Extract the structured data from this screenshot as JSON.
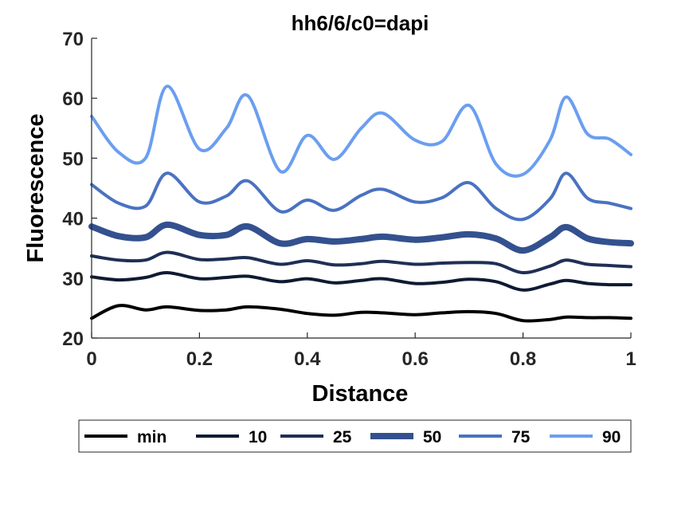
{
  "chart_data": {
    "type": "line",
    "title": "hh6/6/c0=dapi",
    "xlabel": "Distance",
    "ylabel": "Fluorescence",
    "xlim": [
      0,
      1
    ],
    "ylim": [
      20,
      70
    ],
    "xticks": [
      0,
      0.2,
      0.4,
      0.6,
      0.8,
      1
    ],
    "xtick_labels": [
      "0",
      "0.2",
      "0.4",
      "0.6",
      "0.8",
      "1"
    ],
    "yticks": [
      20,
      30,
      40,
      50,
      60,
      70
    ],
    "ytick_labels": [
      "20",
      "30",
      "40",
      "50",
      "60",
      "70"
    ],
    "grid": false,
    "legend_position": "bottom",
    "legend_orientation": "horizontal",
    "x": [
      0,
      0.05,
      0.1,
      0.14,
      0.2,
      0.25,
      0.29,
      0.35,
      0.4,
      0.45,
      0.5,
      0.54,
      0.6,
      0.65,
      0.7,
      0.75,
      0.8,
      0.85,
      0.88,
      0.92,
      0.96,
      1
    ],
    "series": [
      {
        "name": "min",
        "color": "#000000",
        "width": 4,
        "values": [
          23.3,
          25.4,
          24.7,
          25.2,
          24.6,
          24.7,
          25.2,
          24.8,
          24.1,
          23.8,
          24.3,
          24.2,
          23.9,
          24.2,
          24.4,
          24.1,
          22.9,
          23.1,
          23.5,
          23.4,
          23.4,
          23.3
        ]
      },
      {
        "name": "10",
        "color": "#0f1a33",
        "width": 4,
        "values": [
          30.2,
          29.7,
          30.1,
          30.9,
          29.9,
          30.1,
          30.3,
          29.4,
          29.9,
          29.2,
          29.6,
          29.9,
          29.1,
          29.3,
          29.8,
          29.4,
          28.0,
          29.0,
          29.6,
          29.1,
          28.9,
          28.9
        ]
      },
      {
        "name": "25",
        "color": "#1f2f55",
        "width": 4,
        "values": [
          33.7,
          33.0,
          33.0,
          34.3,
          33.1,
          33.2,
          33.4,
          32.3,
          32.9,
          32.2,
          32.4,
          32.8,
          32.3,
          32.5,
          32.6,
          32.4,
          30.9,
          32.0,
          33.0,
          32.3,
          32.1,
          31.9
        ]
      },
      {
        "name": "50",
        "color": "#34518f",
        "width": 8,
        "values": [
          38.6,
          37.0,
          36.8,
          38.9,
          37.2,
          37.2,
          38.6,
          35.8,
          36.5,
          36.1,
          36.5,
          36.9,
          36.4,
          36.8,
          37.3,
          36.6,
          34.6,
          36.8,
          38.5,
          36.6,
          36.0,
          35.8
        ]
      },
      {
        "name": "75",
        "color": "#4a72c2",
        "width": 4,
        "values": [
          45.6,
          42.5,
          42.0,
          47.5,
          42.7,
          43.7,
          46.2,
          41.1,
          43.0,
          41.3,
          43.8,
          44.8,
          42.7,
          43.4,
          45.9,
          41.6,
          39.8,
          43.2,
          47.5,
          43.3,
          42.5,
          41.6
        ]
      },
      {
        "name": "90",
        "color": "#6b9ef0",
        "width": 4,
        "values": [
          57.0,
          51.0,
          50.0,
          62.0,
          51.5,
          55.0,
          60.4,
          47.8,
          53.8,
          49.8,
          55.0,
          57.5,
          53.0,
          52.8,
          58.8,
          49.0,
          47.3,
          53.0,
          60.2,
          54.0,
          53.2,
          50.6
        ]
      }
    ]
  }
}
